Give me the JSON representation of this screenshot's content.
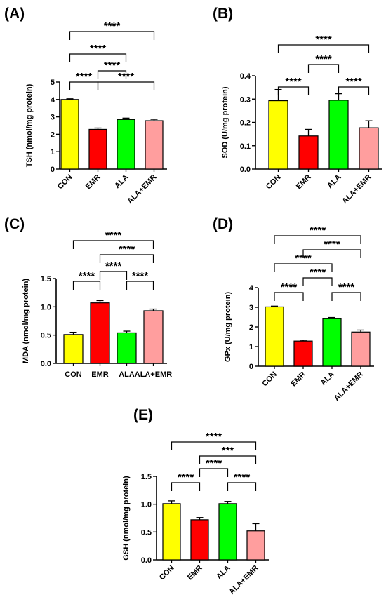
{
  "chart_data": [
    {
      "type": "bar",
      "panel": "(A)",
      "ylabel": "TSH (nmol/mg protein)",
      "categories": [
        "CON",
        "EMR",
        "ALA",
        "ALA+EMR"
      ],
      "values": [
        4.0,
        2.28,
        2.85,
        2.78
      ],
      "errors": [
        0.04,
        0.08,
        0.08,
        0.08
      ],
      "ylim": [
        0,
        5
      ],
      "yticks": [
        "0",
        "1",
        "2",
        "3",
        "4",
        "5"
      ],
      "colors": [
        "#ffff00",
        "#ff0000",
        "#00ff00",
        "#ff9e9e"
      ],
      "rotate_x": true,
      "comparisons": [
        {
          "from": 0,
          "to": 1,
          "label": "****"
        },
        {
          "from": 1,
          "to": 3,
          "label": "****"
        },
        {
          "from": 1,
          "to": 2,
          "label": "****"
        },
        {
          "from": 0,
          "to": 2,
          "label": "****"
        },
        {
          "from": 0,
          "to": 3,
          "label": "****"
        }
      ]
    },
    {
      "type": "bar",
      "panel": "(B)",
      "ylabel": "SOD (U/mg protein)",
      "categories": [
        "CON",
        "EMR",
        "ALA",
        "ALA+EMR"
      ],
      "values": [
        0.293,
        0.142,
        0.295,
        0.177
      ],
      "errors": [
        0.048,
        0.028,
        0.028,
        0.03
      ],
      "ylim": [
        0,
        0.4
      ],
      "yticks": [
        "0.0",
        "0.1",
        "0.2",
        "0.3",
        "0.4"
      ],
      "colors": [
        "#ffff00",
        "#ff0000",
        "#00ff00",
        "#ff9e9e"
      ],
      "rotate_x": true,
      "comparisons": [
        {
          "from": 0,
          "to": 1,
          "label": "****"
        },
        {
          "from": 2,
          "to": 3,
          "label": "****"
        },
        {
          "from": 1,
          "to": 2,
          "label": "****"
        },
        {
          "from": 0,
          "to": 3,
          "label": "****"
        }
      ]
    },
    {
      "type": "bar",
      "panel": "(C)",
      "ylabel": "MDA (nmol/mg protein)",
      "categories": [
        "CON",
        "EMR",
        "ALA",
        "ALA+EMR"
      ],
      "values": [
        0.51,
        1.07,
        0.54,
        0.93
      ],
      "errors": [
        0.04,
        0.04,
        0.03,
        0.03
      ],
      "ylim": [
        0,
        1.5
      ],
      "yticks": [
        "0.0",
        "0.5",
        "1.0",
        "1.5"
      ],
      "colors": [
        "#ffff00",
        "#ff0000",
        "#00ff00",
        "#ff9e9e"
      ],
      "rotate_x": false,
      "comparisons": [
        {
          "from": 0,
          "to": 1,
          "label": "****"
        },
        {
          "from": 2,
          "to": 3,
          "label": "****"
        },
        {
          "from": 1,
          "to": 2,
          "label": "****"
        },
        {
          "from": 1,
          "to": 3,
          "label": "****"
        },
        {
          "from": 0,
          "to": 3,
          "label": "****"
        }
      ]
    },
    {
      "type": "bar",
      "panel": "(D)",
      "ylabel": "GPx (U/mg protein)",
      "categories": [
        "CON",
        "EMR",
        "ALA",
        "ALA+EMR"
      ],
      "values": [
        3.02,
        1.28,
        2.42,
        1.74
      ],
      "errors": [
        0.04,
        0.05,
        0.06,
        0.1
      ],
      "ylim": [
        0,
        4
      ],
      "yticks": [
        "0",
        "1",
        "2",
        "3",
        "4"
      ],
      "colors": [
        "#ffff00",
        "#ff0000",
        "#00ff00",
        "#ff9e9e"
      ],
      "rotate_x": true,
      "comparisons": [
        {
          "from": 0,
          "to": 1,
          "label": "****"
        },
        {
          "from": 2,
          "to": 3,
          "label": "****"
        },
        {
          "from": 1,
          "to": 2,
          "label": "****"
        },
        {
          "from": 0,
          "to": 2,
          "label": "****"
        },
        {
          "from": 1,
          "to": 3,
          "label": "****"
        },
        {
          "from": 0,
          "to": 3,
          "label": "****"
        }
      ]
    },
    {
      "type": "bar",
      "panel": "(E)",
      "ylabel": "GSH (nmol/mg protein)",
      "categories": [
        "CON",
        "EMR",
        "ALA",
        "ALA+EMR"
      ],
      "values": [
        1.01,
        0.72,
        1.01,
        0.52
      ],
      "errors": [
        0.05,
        0.04,
        0.04,
        0.13
      ],
      "ylim": [
        0,
        1.5
      ],
      "yticks": [
        "0.0",
        "0.5",
        "1.0",
        "1.5"
      ],
      "colors": [
        "#ffff00",
        "#ff0000",
        "#00ff00",
        "#ff9e9e"
      ],
      "rotate_x": true,
      "comparisons": [
        {
          "from": 0,
          "to": 1,
          "label": "****"
        },
        {
          "from": 2,
          "to": 3,
          "label": "****"
        },
        {
          "from": 1,
          "to": 2,
          "label": "****"
        },
        {
          "from": 1,
          "to": 3,
          "label": "***"
        },
        {
          "from": 0,
          "to": 3,
          "label": "****"
        }
      ]
    }
  ]
}
